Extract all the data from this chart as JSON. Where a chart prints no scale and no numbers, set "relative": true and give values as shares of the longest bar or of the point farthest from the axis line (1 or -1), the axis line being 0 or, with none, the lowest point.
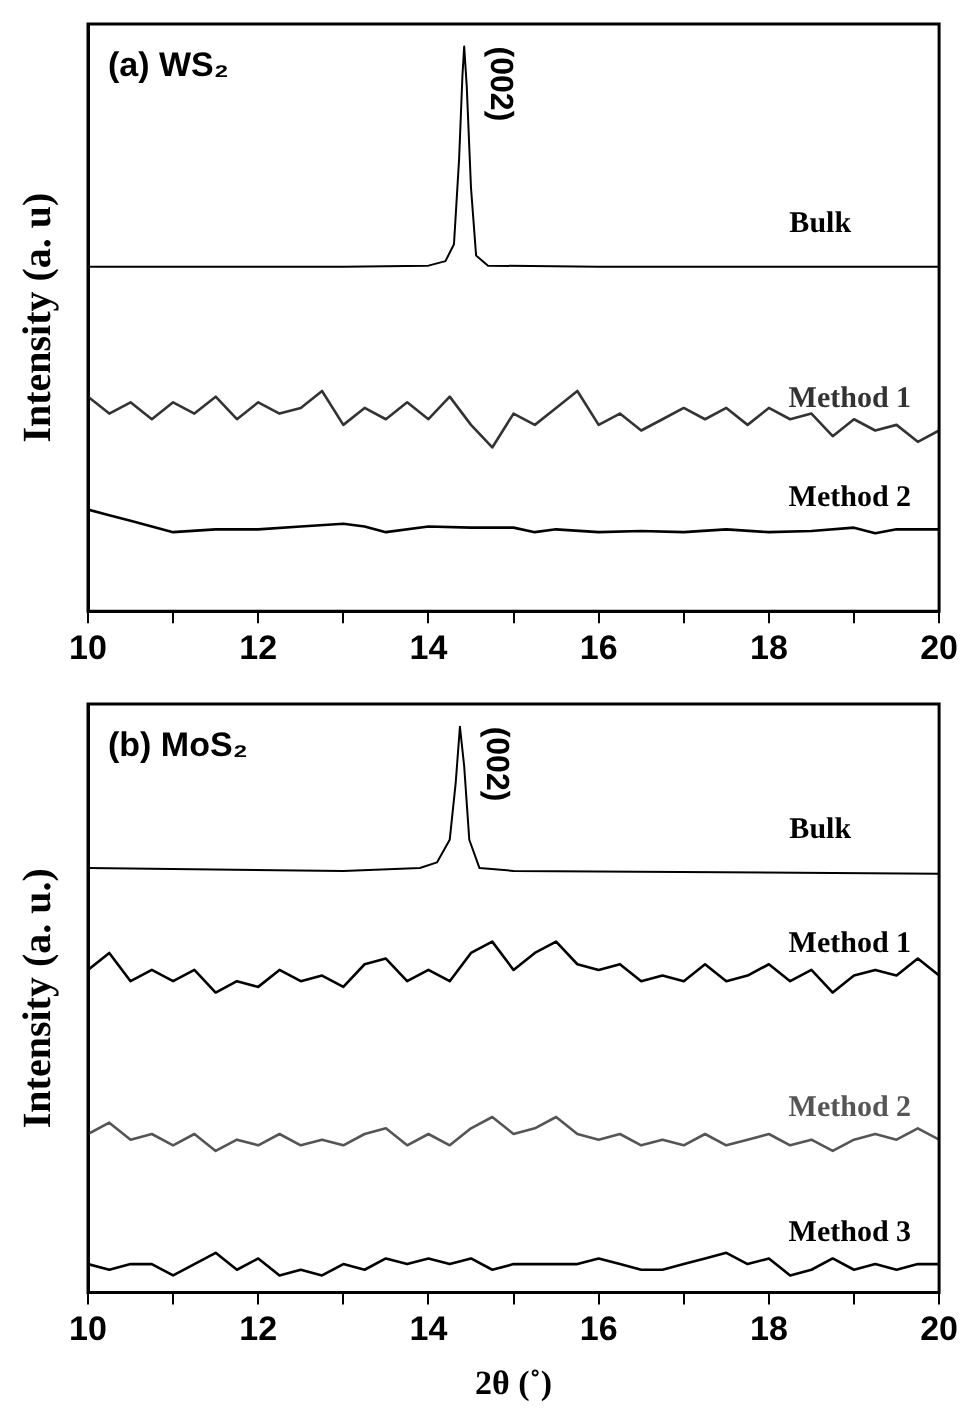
{
  "chart_data": [
    {
      "type": "line",
      "title": "(a) WS₂",
      "ylabel": "Intensity (a. u)",
      "relative": true,
      "grid": false,
      "legend": false,
      "marker": "none",
      "line_style": "solid",
      "xlim": [
        10,
        20
      ],
      "xticks": [
        10,
        {
          "value": 11,
          "label": null
        },
        12,
        {
          "value": 13,
          "label": null
        },
        14,
        {
          "value": 15,
          "label": null
        },
        16,
        {
          "value": 17,
          "label": null
        },
        18,
        {
          "value": 19,
          "label": null
        },
        20
      ],
      "annotations": [
        {
          "text": "(002)",
          "x": 14.42,
          "y": 1
        }
      ],
      "series": [
        {
          "name": "Bulk",
          "color": "#000000",
          "x": [
            10,
            13,
            14,
            14.2,
            14.3,
            14.36,
            14.4,
            14.42,
            14.45,
            14.5,
            14.56,
            14.7,
            16,
            20
          ],
          "values": [
            0.61,
            0.61,
            0.612,
            0.62,
            0.65,
            0.8,
            0.95,
            1,
            0.93,
            0.75,
            0.63,
            0.612,
            0.61,
            0.61
          ]
        },
        {
          "name": "Method 1",
          "color": "#333333",
          "x": [
            10,
            10.25,
            10.5,
            10.75,
            11,
            11.25,
            11.5,
            11.75,
            12,
            12.25,
            12.5,
            12.75,
            13,
            13.25,
            13.5,
            13.75,
            14,
            14.25,
            14.5,
            14.75,
            15,
            15.25,
            15.5,
            15.75,
            16,
            16.25,
            16.5,
            16.75,
            17,
            17.25,
            17.5,
            17.75,
            18,
            18.25,
            18.5,
            18.75,
            19,
            19.25,
            19.5,
            19.75,
            20
          ],
          "values": [
            0.38,
            0.35,
            0.37,
            0.34,
            0.37,
            0.35,
            0.38,
            0.34,
            0.37,
            0.35,
            0.36,
            0.39,
            0.33,
            0.36,
            0.34,
            0.37,
            0.34,
            0.38,
            0.33,
            0.29,
            0.35,
            0.33,
            0.36,
            0.39,
            0.33,
            0.35,
            0.32,
            0.34,
            0.36,
            0.34,
            0.36,
            0.33,
            0.36,
            0.34,
            0.35,
            0.31,
            0.34,
            0.32,
            0.33,
            0.3,
            0.32
          ]
        },
        {
          "name": "Method 2",
          "color": "#000000",
          "x": [
            10,
            10.25,
            10.5,
            10.75,
            11,
            11.5,
            12,
            12.5,
            13,
            13.25,
            13.5,
            14,
            14.5,
            15,
            15.25,
            15.5,
            16,
            16.5,
            17,
            17.5,
            18,
            18.5,
            19,
            19.25,
            19.5,
            20
          ],
          "values": [
            0.18,
            0.17,
            0.16,
            0.15,
            0.14,
            0.145,
            0.145,
            0.15,
            0.155,
            0.15,
            0.14,
            0.15,
            0.148,
            0.148,
            0.14,
            0.145,
            0.14,
            0.142,
            0.14,
            0.145,
            0.14,
            0.142,
            0.148,
            0.138,
            0.145,
            0.145
          ]
        }
      ]
    },
    {
      "type": "line",
      "title": "(b) MoS₂",
      "xlabel": "2θ (˚)",
      "ylabel": "Intensity (a. u.)",
      "relative": true,
      "grid": false,
      "legend": false,
      "marker": "none",
      "line_style": "solid",
      "xlim": [
        10,
        20
      ],
      "xticks": [
        10,
        {
          "value": 11,
          "label": null
        },
        12,
        {
          "value": 13,
          "label": null
        },
        14,
        {
          "value": 15,
          "label": null
        },
        16,
        {
          "value": 17,
          "label": null
        },
        18,
        {
          "value": 19,
          "label": null
        },
        20
      ],
      "annotations": [
        {
          "text": "(002)",
          "x": 14.37,
          "y": 1
        }
      ],
      "series": [
        {
          "name": "Bulk",
          "color": "#000000",
          "x": [
            10,
            13,
            13.9,
            14.1,
            14.25,
            14.32,
            14.37,
            14.42,
            14.48,
            14.6,
            15,
            20
          ],
          "values": [
            0.75,
            0.745,
            0.75,
            0.76,
            0.8,
            0.9,
            1,
            0.93,
            0.8,
            0.75,
            0.745,
            0.74
          ]
        },
        {
          "name": "Method 1",
          "color": "#000000",
          "x": [
            10,
            10.25,
            10.5,
            10.75,
            11,
            11.25,
            11.5,
            11.75,
            12,
            12.25,
            12.5,
            12.75,
            13,
            13.25,
            13.5,
            13.75,
            14,
            14.25,
            14.5,
            14.75,
            15,
            15.25,
            15.5,
            15.75,
            16,
            16.25,
            16.5,
            16.75,
            17,
            17.25,
            17.5,
            17.75,
            18,
            18.25,
            18.5,
            18.75,
            19,
            19.25,
            19.5,
            19.75,
            20
          ],
          "values": [
            0.57,
            0.6,
            0.55,
            0.57,
            0.55,
            0.57,
            0.53,
            0.55,
            0.54,
            0.57,
            0.55,
            0.56,
            0.54,
            0.58,
            0.59,
            0.55,
            0.57,
            0.55,
            0.6,
            0.62,
            0.57,
            0.6,
            0.62,
            0.58,
            0.57,
            0.58,
            0.55,
            0.56,
            0.55,
            0.58,
            0.55,
            0.56,
            0.58,
            0.55,
            0.57,
            0.53,
            0.56,
            0.57,
            0.56,
            0.59,
            0.56
          ]
        },
        {
          "name": "Method 2",
          "color": "#555555",
          "x": [
            10,
            10.25,
            10.5,
            10.75,
            11,
            11.25,
            11.5,
            11.75,
            12,
            12.25,
            12.5,
            12.75,
            13,
            13.25,
            13.5,
            13.75,
            14,
            14.25,
            14.5,
            14.75,
            15,
            15.25,
            15.5,
            15.75,
            16,
            16.25,
            16.5,
            16.75,
            17,
            17.25,
            17.5,
            17.75,
            18,
            18.25,
            18.5,
            18.75,
            19,
            19.25,
            19.5,
            19.75,
            20
          ],
          "values": [
            0.28,
            0.3,
            0.27,
            0.28,
            0.26,
            0.28,
            0.25,
            0.27,
            0.26,
            0.28,
            0.26,
            0.27,
            0.26,
            0.28,
            0.29,
            0.26,
            0.28,
            0.26,
            0.29,
            0.31,
            0.28,
            0.29,
            0.31,
            0.28,
            0.27,
            0.28,
            0.26,
            0.27,
            0.26,
            0.28,
            0.26,
            0.27,
            0.28,
            0.26,
            0.27,
            0.25,
            0.27,
            0.28,
            0.27,
            0.29,
            0.27
          ]
        },
        {
          "name": "Method 3",
          "color": "#000000",
          "x": [
            10,
            10.25,
            10.5,
            10.75,
            11,
            11.25,
            11.5,
            11.75,
            12,
            12.25,
            12.5,
            12.75,
            13,
            13.25,
            13.5,
            13.75,
            14,
            14.25,
            14.5,
            14.75,
            15,
            15.25,
            15.5,
            15.75,
            16,
            16.25,
            16.5,
            16.75,
            17,
            17.25,
            17.5,
            17.75,
            18,
            18.25,
            18.5,
            18.75,
            19,
            19.25,
            19.5,
            19.75,
            20
          ],
          "values": [
            0.05,
            0.04,
            0.05,
            0.05,
            0.03,
            0.05,
            0.07,
            0.04,
            0.06,
            0.03,
            0.04,
            0.03,
            0.05,
            0.04,
            0.06,
            0.05,
            0.06,
            0.05,
            0.06,
            0.04,
            0.05,
            0.05,
            0.05,
            0.05,
            0.06,
            0.05,
            0.04,
            0.04,
            0.05,
            0.06,
            0.07,
            0.05,
            0.06,
            0.03,
            0.04,
            0.06,
            0.04,
            0.05,
            0.04,
            0.05,
            0.05
          ]
        }
      ]
    }
  ]
}
